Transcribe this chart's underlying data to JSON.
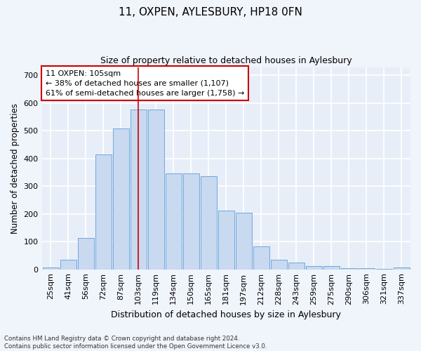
{
  "title1": "11, OXPEN, AYLESBURY, HP18 0FN",
  "title2": "Size of property relative to detached houses in Aylesbury",
  "xlabel": "Distribution of detached houses by size in Aylesbury",
  "ylabel": "Number of detached properties",
  "categories": [
    "25sqm",
    "41sqm",
    "56sqm",
    "72sqm",
    "87sqm",
    "103sqm",
    "119sqm",
    "134sqm",
    "150sqm",
    "165sqm",
    "181sqm",
    "197sqm",
    "212sqm",
    "228sqm",
    "243sqm",
    "259sqm",
    "275sqm",
    "290sqm",
    "306sqm",
    "321sqm",
    "337sqm"
  ],
  "values": [
    8,
    35,
    113,
    415,
    508,
    578,
    578,
    347,
    347,
    335,
    212,
    205,
    83,
    35,
    25,
    13,
    13,
    5,
    3,
    2,
    6
  ],
  "bar_color": "#c8d9f0",
  "bar_edge_color": "#6fa8dc",
  "vline_x": 5,
  "vline_color": "#cc0000",
  "annotation_text": "11 OXPEN: 105sqm\n← 38% of detached houses are smaller (1,107)\n61% of semi-detached houses are larger (1,758) →",
  "annotation_box_color": "#ffffff",
  "annotation_box_edge": "#cc0000",
  "bg_color": "#f0f4fb",
  "plot_bg_color": "#e8eef8",
  "grid_color": "#ffffff",
  "footer_text": "Contains HM Land Registry data © Crown copyright and database right 2024.\nContains public sector information licensed under the Open Government Licence v3.0.",
  "ylim": [
    0,
    730
  ],
  "yticks": [
    0,
    100,
    200,
    300,
    400,
    500,
    600,
    700
  ]
}
